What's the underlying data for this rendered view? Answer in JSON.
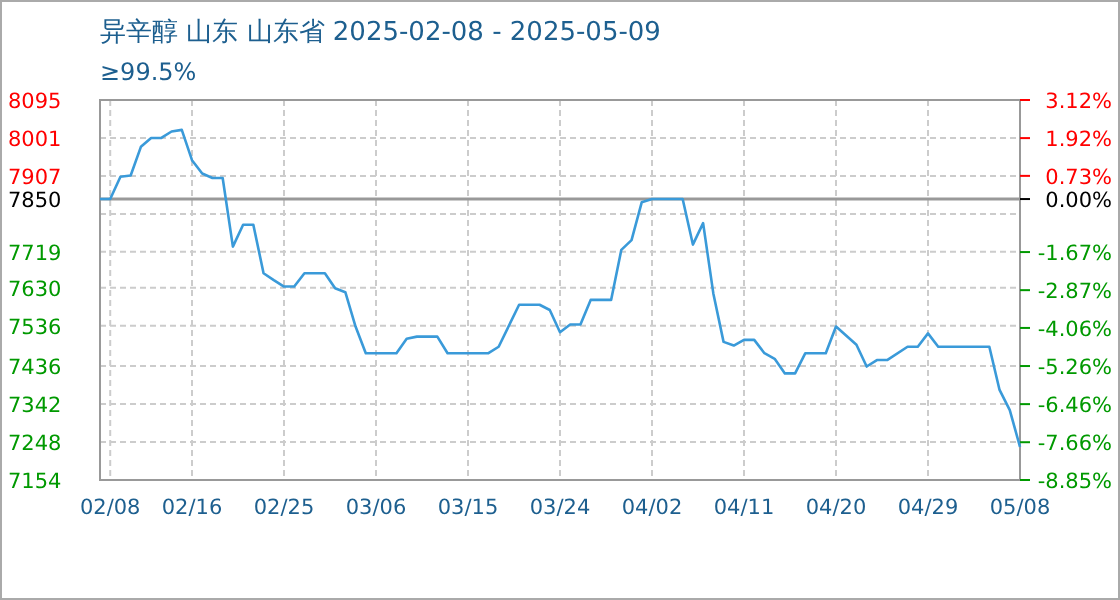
{
  "chart_data": {
    "type": "line",
    "title": "异辛醇 山东 山东省 2025-02-08 - 2025-05-09",
    "subtitle": "≥99.5%",
    "x": [
      "2025-02-07",
      "2025-02-08",
      "2025-02-09",
      "2025-02-10",
      "2025-02-11",
      "2025-02-12",
      "2025-02-13",
      "2025-02-14",
      "2025-02-15",
      "2025-02-16",
      "2025-02-17",
      "2025-02-18",
      "2025-02-19",
      "2025-02-20",
      "2025-02-21",
      "2025-02-22",
      "2025-02-23",
      "2025-02-24",
      "2025-02-25",
      "2025-02-26",
      "2025-02-27",
      "2025-03-01",
      "2025-03-02",
      "2025-03-03",
      "2025-03-04",
      "2025-03-05",
      "2025-03-08",
      "2025-03-09",
      "2025-03-10",
      "2025-03-12",
      "2025-03-13",
      "2025-03-17",
      "2025-03-18",
      "2025-03-20",
      "2025-03-22",
      "2025-03-23",
      "2025-03-24",
      "2025-03-25",
      "2025-03-26",
      "2025-03-27",
      "2025-03-29",
      "2025-03-30",
      "2025-03-31",
      "2025-04-01",
      "2025-04-02",
      "2025-04-05",
      "2025-04-06",
      "2025-04-07",
      "2025-04-08",
      "2025-04-09",
      "2025-04-10",
      "2025-04-11",
      "2025-04-12",
      "2025-04-13",
      "2025-04-14",
      "2025-04-15",
      "2025-04-16",
      "2025-04-17",
      "2025-04-19",
      "2025-04-20",
      "2025-04-22",
      "2025-04-23",
      "2025-04-24",
      "2025-04-25",
      "2025-04-27",
      "2025-04-28",
      "2025-04-29",
      "2025-04-30",
      "2025-05-05",
      "2025-05-06",
      "2025-05-07",
      "2025-05-08"
    ],
    "series": [
      {
        "color": "#3a9ad9",
        "values": [
          7850,
          7850,
          7905,
          7908,
          7979,
          8001,
          8001,
          8017,
          8021,
          7946,
          7913,
          7902,
          7902,
          7732,
          7786,
          7786,
          7666,
          7649,
          7633,
          7633,
          7666,
          7666,
          7629,
          7619,
          7534,
          7468,
          7468,
          7504,
          7509,
          7509,
          7468,
          7468,
          7484,
          7588,
          7588,
          7575,
          7520,
          7539,
          7539,
          7600,
          7600,
          7724,
          7748,
          7842,
          7850,
          7850,
          7737,
          7790,
          7616,
          7496,
          7487,
          7501,
          7501,
          7468,
          7454,
          7418,
          7418,
          7468,
          7468,
          7534,
          7489,
          7435,
          7451,
          7451,
          7484,
          7484,
          7517,
          7484,
          7484,
          7377,
          7327,
          7236
        ]
      }
    ],
    "xlim": [
      "2025-02-07",
      "2025-05-08"
    ],
    "xticks": [
      {
        "value": "2025-02-08",
        "label": "02/08"
      },
      {
        "value": "2025-02-16",
        "label": "02/16"
      },
      {
        "value": "2025-02-25",
        "label": "02/25"
      },
      {
        "value": "2025-03-06",
        "label": "03/06"
      },
      {
        "value": "2025-03-15",
        "label": "03/15"
      },
      {
        "value": "2025-03-24",
        "label": "03/24"
      },
      {
        "value": "2025-04-02",
        "label": "04/02"
      },
      {
        "value": "2025-04-11",
        "label": "04/11"
      },
      {
        "value": "2025-04-20",
        "label": "04/20"
      },
      {
        "value": "2025-04-29",
        "label": "04/29"
      },
      {
        "value": "2025-05-08",
        "label": "05/08"
      }
    ],
    "ylim": [
      7154,
      8095
    ],
    "yticks": [
      8095,
      8001,
      7907,
      7850,
      {
        "value": 7813,
        "label": null
      },
      7719,
      7630,
      7536,
      7436,
      7342,
      7248,
      7154
    ],
    "y2lim": [
      -8.85,
      3.12
    ],
    "y2ticks": [
      {
        "value": 3.12,
        "label": "3.12%"
      },
      {
        "value": 1.92,
        "label": "1.92%"
      },
      {
        "value": 0.73,
        "label": "0.73%"
      },
      {
        "value": 0,
        "label": "0.00%"
      },
      {
        "value": -1.67,
        "label": "-1.67%"
      },
      {
        "value": -2.87,
        "label": "-2.87%"
      },
      {
        "value": -4.06,
        "label": "-4.06%"
      },
      {
        "value": -5.26,
        "label": "-5.26%"
      },
      {
        "value": -6.46,
        "label": "-6.46%"
      },
      {
        "value": -7.66,
        "label": "-7.66%"
      },
      {
        "value": -8.85,
        "label": "-8.85%"
      }
    ],
    "ref_lines": [
      {
        "axis": "y",
        "value": 7850,
        "color": "#999999"
      }
    ],
    "grid": true,
    "marker": "none",
    "line_style": "solid"
  }
}
